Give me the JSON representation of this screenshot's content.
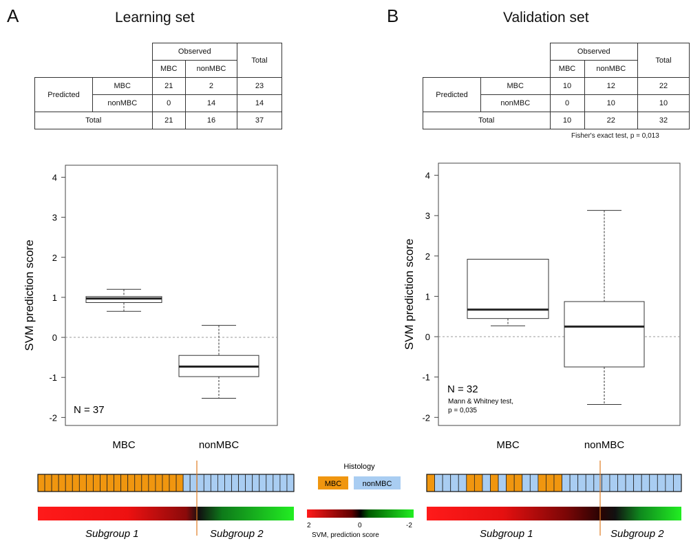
{
  "panels": [
    {
      "letter": "A",
      "title": "Learning set",
      "table": {
        "observed_label": "Observed",
        "total_col_label": "Total",
        "predicted_label": "Predicted",
        "col_mbc": "MBC",
        "col_nonmbc": "nonMBC",
        "row_mbc": "MBC",
        "row_nonmbc": "nonMBC",
        "total_row_label": "Total",
        "cells": {
          "mbc_mbc": "21",
          "mbc_non": "2",
          "mbc_tot": "23",
          "non_mbc": "0",
          "non_non": "14",
          "non_tot": "14",
          "tot_mbc": "21",
          "tot_non": "16",
          "tot_tot": "37"
        }
      },
      "n_label": "N = 37",
      "subgroup1": "Subgroup 1",
      "subgroup2": "Subgroup 2"
    },
    {
      "letter": "B",
      "title": "Validation set",
      "table": {
        "observed_label": "Observed",
        "total_col_label": "Total",
        "predicted_label": "Predicted",
        "col_mbc": "MBC",
        "col_nonmbc": "nonMBC",
        "row_mbc": "MBC",
        "row_nonmbc": "nonMBC",
        "total_row_label": "Total",
        "cells": {
          "mbc_mbc": "10",
          "mbc_non": "12",
          "mbc_tot": "22",
          "non_mbc": "0",
          "non_non": "10",
          "non_tot": "10",
          "tot_mbc": "10",
          "tot_non": "22",
          "tot_tot": "32"
        }
      },
      "test_note": "Fisher's exact test, p = 0,013",
      "n_label": "N = 32",
      "mw_line1": "Mann & Whitney test,",
      "mw_line2": "p = 0,035",
      "subgroup1": "Subgroup 1",
      "subgroup2": "Subgroup 2"
    }
  ],
  "legend": {
    "title": "Histology",
    "mbc": "MBC",
    "nonmbc": "nonMBC",
    "scale_left": "2",
    "scale_mid": "0",
    "scale_right": "-2",
    "scale_label": "SVM, prediction score"
  },
  "colors": {
    "mbc": "#f0960f",
    "nonmbc": "#a9cdf2",
    "red": "#ff1a1a",
    "green": "#22ee22",
    "divider": "#e07b22"
  },
  "chart_data": [
    {
      "type": "box",
      "ylabel": "SVM prediction score",
      "categories": [
        "MBC",
        "nonMBC"
      ],
      "yticks": [
        "4",
        "3",
        "2",
        "1",
        "0",
        "-1",
        "-2"
      ],
      "ylim": [
        -2.2,
        4.3
      ],
      "reference_line": 0,
      "boxes": [
        {
          "name": "MBC",
          "min": 0.65,
          "q1": 0.87,
          "median": 0.97,
          "q3": 1.02,
          "max": 1.2
        },
        {
          "name": "nonMBC",
          "min": -1.52,
          "q1": -0.98,
          "median": -0.73,
          "q3": -0.45,
          "max": 0.3
        }
      ],
      "histology_strip": [
        "MBC",
        "MBC",
        "MBC",
        "MBC",
        "MBC",
        "MBC",
        "MBC",
        "MBC",
        "MBC",
        "MBC",
        "MBC",
        "MBC",
        "MBC",
        "MBC",
        "MBC",
        "MBC",
        "MBC",
        "MBC",
        "MBC",
        "MBC",
        "MBC",
        "nonMBC",
        "nonMBC",
        "nonMBC",
        "nonMBC",
        "nonMBC",
        "nonMBC",
        "nonMBC",
        "nonMBC",
        "nonMBC",
        "nonMBC",
        "nonMBC",
        "nonMBC",
        "nonMBC",
        "nonMBC",
        "nonMBC",
        "nonMBC"
      ],
      "subgroup_split_index": 23
    },
    {
      "type": "box",
      "ylabel": "SVM prediction score",
      "categories": [
        "MBC",
        "nonMBC"
      ],
      "yticks": [
        "4",
        "3",
        "2",
        "1",
        "0",
        "-1",
        "-2"
      ],
      "ylim": [
        -2.2,
        4.3
      ],
      "reference_line": 0,
      "boxes": [
        {
          "name": "MBC",
          "min": 0.27,
          "q1": 0.45,
          "median": 0.67,
          "q3": 1.92,
          "max": 1.92
        },
        {
          "name": "nonMBC",
          "min": -1.68,
          "q1": -0.75,
          "median": 0.25,
          "q3": 0.87,
          "max": 3.13
        }
      ],
      "histology_strip": [
        "MBC",
        "nonMBC",
        "nonMBC",
        "nonMBC",
        "nonMBC",
        "MBC",
        "MBC",
        "nonMBC",
        "MBC",
        "nonMBC",
        "MBC",
        "MBC",
        "nonMBC",
        "nonMBC",
        "MBC",
        "MBC",
        "MBC",
        "nonMBC",
        "nonMBC",
        "nonMBC",
        "nonMBC",
        "nonMBC",
        "nonMBC",
        "nonMBC",
        "nonMBC",
        "nonMBC",
        "nonMBC",
        "nonMBC",
        "nonMBC",
        "nonMBC",
        "nonMBC",
        "nonMBC"
      ],
      "subgroup_split_index": 22
    }
  ]
}
